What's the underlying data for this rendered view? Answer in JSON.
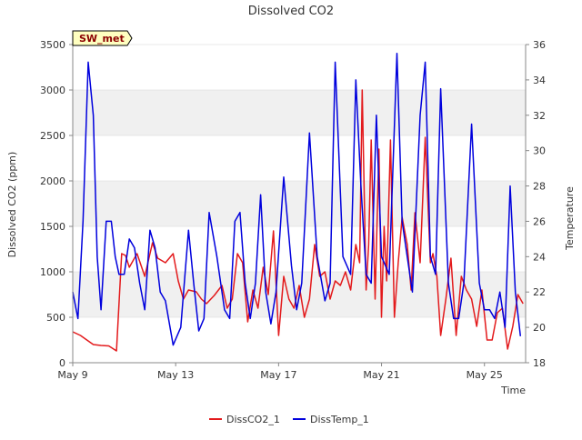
{
  "chart_data": {
    "type": "line",
    "title": "Dissolved CO2",
    "badge": "SW_met",
    "xlabel": "Time",
    "ylabel_left": "Dissolved CO2 (ppm)",
    "ylabel_right": "Temperature",
    "x_ticks": [
      "May 9",
      "May 13",
      "May 17",
      "May 21",
      "May 25"
    ],
    "y_left_ticks": [
      "0",
      "500",
      "1000",
      "1500",
      "2000",
      "2500",
      "3000",
      "3500"
    ],
    "y_right_ticks": [
      "18",
      "20",
      "22",
      "24",
      "26",
      "28",
      "30",
      "32",
      "34",
      "36"
    ],
    "ylim_left": [
      0,
      3500
    ],
    "ylim_right": [
      18,
      36
    ],
    "x_range_days": [
      9,
      26.6
    ],
    "grid": "horizontal bands",
    "legend_position": "bottom",
    "series": [
      {
        "name": "DissCO2_1",
        "axis": "left",
        "color": "#e31a1c",
        "x": [
          9.0,
          9.3,
          9.5,
          9.8,
          10.1,
          10.4,
          10.7,
          10.9,
          11.05,
          11.2,
          11.5,
          11.8,
          12.1,
          12.3,
          12.6,
          12.9,
          13.1,
          13.3,
          13.5,
          13.8,
          14.0,
          14.2,
          14.5,
          14.8,
          15.0,
          15.2,
          15.4,
          15.6,
          15.8,
          16.0,
          16.2,
          16.4,
          16.6,
          16.8,
          17.0,
          17.2,
          17.4,
          17.6,
          17.8,
          18.0,
          18.2,
          18.4,
          18.6,
          18.8,
          19.0,
          19.2,
          19.4,
          19.6,
          19.8,
          20.0,
          20.15,
          20.25,
          20.4,
          20.5,
          20.6,
          20.75,
          20.9,
          21.0,
          21.1,
          21.2,
          21.35,
          21.5,
          21.65,
          21.8,
          22.0,
          22.15,
          22.3,
          22.5,
          22.7,
          22.9,
          23.0,
          23.15,
          23.3,
          23.5,
          23.7,
          23.9,
          24.1,
          24.3,
          24.5,
          24.7,
          24.9,
          25.1,
          25.3,
          25.5,
          25.7,
          25.9,
          26.1,
          26.3,
          26.5
        ],
        "values": [
          340,
          300,
          260,
          200,
          190,
          185,
          130,
          1200,
          1180,
          1050,
          1200,
          950,
          1320,
          1150,
          1100,
          1200,
          900,
          700,
          800,
          780,
          700,
          650,
          740,
          850,
          600,
          700,
          1200,
          1100,
          450,
          800,
          600,
          1050,
          750,
          1450,
          300,
          950,
          700,
          600,
          850,
          500,
          700,
          1300,
          950,
          1000,
          700,
          900,
          850,
          1000,
          800,
          1300,
          1100,
          3000,
          800,
          1300,
          2450,
          700,
          2350,
          500,
          1500,
          900,
          2450,
          500,
          1100,
          1600,
          1300,
          800,
          1650,
          1100,
          2480,
          1100,
          1200,
          950,
          300,
          700,
          1150,
          300,
          950,
          800,
          700,
          400,
          800,
          250,
          250,
          550,
          600,
          150,
          400,
          750,
          650
        ]
      },
      {
        "name": "DissTemp_1",
        "axis": "right",
        "color": "#0000dd",
        "x": [
          9.0,
          9.2,
          9.4,
          9.6,
          9.8,
          9.95,
          10.1,
          10.3,
          10.5,
          10.65,
          10.8,
          11.0,
          11.2,
          11.4,
          11.6,
          11.8,
          12.0,
          12.2,
          12.4,
          12.6,
          12.9,
          13.2,
          13.5,
          13.7,
          13.9,
          14.1,
          14.3,
          14.6,
          14.9,
          15.1,
          15.3,
          15.5,
          15.7,
          15.9,
          16.1,
          16.3,
          16.5,
          16.7,
          16.9,
          17.2,
          17.5,
          17.7,
          17.9,
          18.2,
          18.5,
          18.8,
          19.0,
          19.2,
          19.5,
          19.8,
          20.0,
          20.2,
          20.4,
          20.6,
          20.8,
          21.0,
          21.3,
          21.6,
          21.8,
          22.0,
          22.2,
          22.5,
          22.7,
          22.9,
          23.1,
          23.3,
          23.6,
          23.8,
          24.0,
          24.2,
          24.5,
          24.8,
          25.0,
          25.2,
          25.4,
          25.6,
          25.8,
          26.0,
          26.2,
          26.4
        ],
        "values": [
          22.0,
          20.5,
          26.0,
          35.0,
          32.0,
          24.0,
          21.0,
          26.0,
          26.0,
          24.0,
          23.0,
          23.0,
          25.0,
          24.5,
          22.5,
          21.0,
          25.5,
          24.5,
          22.0,
          21.5,
          19.0,
          20.0,
          25.5,
          22.5,
          19.8,
          20.5,
          26.5,
          24.0,
          21.0,
          20.5,
          26.0,
          26.5,
          22.5,
          20.5,
          22.5,
          27.5,
          22.0,
          20.2,
          22.0,
          28.5,
          23.5,
          21.0,
          22.5,
          31.0,
          24.0,
          21.5,
          22.5,
          35.0,
          24.0,
          23.0,
          34.0,
          28.0,
          23.0,
          22.5,
          32.0,
          24.0,
          23.0,
          35.5,
          26.0,
          24.0,
          22.0,
          32.0,
          35.0,
          24.0,
          23.0,
          33.5,
          22.5,
          20.5,
          20.5,
          22.5,
          31.5,
          22.5,
          21.0,
          21.0,
          20.5,
          22.0,
          20.0,
          28.0,
          22.0,
          19.5
        ]
      }
    ]
  }
}
